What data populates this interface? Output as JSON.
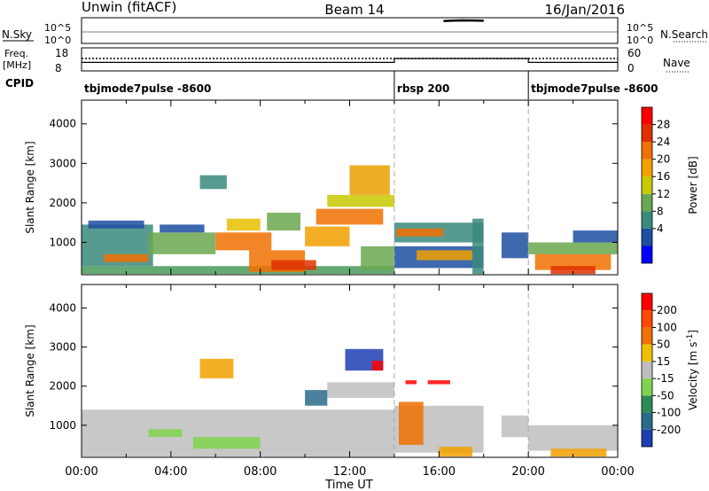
{
  "header": {
    "station": "Unwin (fitACF)",
    "beam": "Beam 14",
    "date": "16/Jan/2016"
  },
  "top_panels": {
    "nsky_label": "N.Sky",
    "nsearch_label": "N.Search",
    "noise_ticks": [
      "10^5",
      "10^0"
    ],
    "freq_label_1": "Freq.",
    "freq_label_2": "[MHz]",
    "freq_ticks": [
      "18",
      "8"
    ],
    "nave_ticks": [
      "60",
      "0"
    ],
    "nave_label": "Nave",
    "cpid_label": "CPID",
    "noise_trace": [
      [
        16.2,
        0.88
      ],
      [
        16.5,
        0.9
      ],
      [
        17.0,
        0.93
      ],
      [
        17.5,
        0.92
      ],
      [
        18.0,
        0.9
      ]
    ],
    "nave_level": 0.9,
    "nave_gap": [
      14.0,
      20.0
    ],
    "cpid_segments": [
      {
        "start": 0,
        "end": 14,
        "label": "tbjmode7pulse -8600"
      },
      {
        "start": 14,
        "end": 20,
        "label": "rbsp 200"
      },
      {
        "start": 20,
        "end": 24,
        "label": "tbjmode7pulse -8600"
      }
    ]
  },
  "chart_data": [
    {
      "type": "heatmap",
      "name": "power",
      "ylabel": "Slant Range [km]",
      "ylim": [
        180,
        4600
      ],
      "xlim": [
        0,
        24
      ],
      "yticks": [
        1000,
        2000,
        3000,
        4000
      ],
      "colorbar_label": "Power [dB]",
      "colorbar_ticks": [
        "28",
        "24",
        "20",
        "16",
        "12",
        "8",
        "4"
      ],
      "colorbar_colors": [
        "#0000ff",
        "#1d4fa0",
        "#3a8a7c",
        "#6aa84f",
        "#c8c800",
        "#f2a000",
        "#f07000",
        "#e03000",
        "#ff0000"
      ],
      "blocks": [
        {
          "x0": 0.0,
          "x1": 14.0,
          "y0": 200,
          "y1": 400,
          "c": "#4a9a5c"
        },
        {
          "x0": 0.0,
          "x1": 3.2,
          "y0": 400,
          "y1": 1450,
          "c": "#3a8a7c"
        },
        {
          "x0": 0.3,
          "x1": 2.8,
          "y0": 1350,
          "y1": 1550,
          "c": "#1d4fa0"
        },
        {
          "x0": 1.0,
          "x1": 3.0,
          "y0": 500,
          "y1": 700,
          "c": "#f07000"
        },
        {
          "x0": 3.0,
          "x1": 6.0,
          "y0": 700,
          "y1": 1250,
          "c": "#6aa84f"
        },
        {
          "x0": 3.5,
          "x1": 5.5,
          "y0": 1250,
          "y1": 1450,
          "c": "#1d4fa0"
        },
        {
          "x0": 5.3,
          "x1": 6.5,
          "y0": 2350,
          "y1": 2700,
          "c": "#3a8a7c"
        },
        {
          "x0": 6.0,
          "x1": 8.5,
          "y0": 800,
          "y1": 1250,
          "c": "#f07000"
        },
        {
          "x0": 6.5,
          "x1": 8.0,
          "y0": 1300,
          "y1": 1600,
          "c": "#e8c000"
        },
        {
          "x0": 7.5,
          "x1": 10.0,
          "y0": 250,
          "y1": 800,
          "c": "#f07000"
        },
        {
          "x0": 8.5,
          "x1": 10.5,
          "y0": 300,
          "y1": 550,
          "c": "#e03000"
        },
        {
          "x0": 8.3,
          "x1": 9.8,
          "y0": 1300,
          "y1": 1750,
          "c": "#6aa84f"
        },
        {
          "x0": 10.0,
          "x1": 12.0,
          "y0": 900,
          "y1": 1400,
          "c": "#f2a000"
        },
        {
          "x0": 10.5,
          "x1": 13.5,
          "y0": 1450,
          "y1": 1850,
          "c": "#f07000"
        },
        {
          "x0": 12.0,
          "x1": 13.8,
          "y0": 2200,
          "y1": 2950,
          "c": "#e8a000"
        },
        {
          "x0": 11.0,
          "x1": 14.0,
          "y0": 1900,
          "y1": 2200,
          "c": "#c8c800"
        },
        {
          "x0": 12.5,
          "x1": 14.0,
          "y0": 300,
          "y1": 900,
          "c": "#6aa84f"
        },
        {
          "x0": 14.0,
          "x1": 18.0,
          "y0": 1000,
          "y1": 1500,
          "c": "#3a8a7c"
        },
        {
          "x0": 14.1,
          "x1": 16.2,
          "y0": 1150,
          "y1": 1350,
          "c": "#f07000"
        },
        {
          "x0": 14.0,
          "x1": 18.0,
          "y0": 350,
          "y1": 900,
          "c": "#1d4fa0"
        },
        {
          "x0": 15.0,
          "x1": 17.5,
          "y0": 550,
          "y1": 800,
          "c": "#f2a000"
        },
        {
          "x0": 17.5,
          "x1": 18.0,
          "y0": 200,
          "y1": 1600,
          "c": "#3a8a7c"
        },
        {
          "x0": 18.8,
          "x1": 20.0,
          "y0": 600,
          "y1": 1250,
          "c": "#1d4fa0"
        },
        {
          "x0": 20.0,
          "x1": 24.0,
          "y0": 700,
          "y1": 1000,
          "c": "#6aa84f"
        },
        {
          "x0": 20.3,
          "x1": 23.7,
          "y0": 300,
          "y1": 700,
          "c": "#f07000"
        },
        {
          "x0": 21.0,
          "x1": 23.0,
          "y0": 200,
          "y1": 400,
          "c": "#e03000"
        },
        {
          "x0": 22.0,
          "x1": 24.0,
          "y0": 1000,
          "y1": 1300,
          "c": "#1d4fa0"
        }
      ]
    },
    {
      "type": "heatmap",
      "name": "velocity",
      "ylabel": "Slant Range [km]",
      "xlabel": "Time UT",
      "ylim": [
        180,
        4600
      ],
      "xlim": [
        0,
        24
      ],
      "yticks": [
        1000,
        2000,
        3000,
        4000
      ],
      "xticks": [
        "00:00",
        "04:00",
        "08:00",
        "12:00",
        "16:00",
        "20:00",
        "00:00"
      ],
      "colorbar_label": "Velocity [m s",
      "colorbar_label_sup": "-1",
      "colorbar_label_end": "]",
      "colorbar_ticks": [
        "200",
        "100",
        "50",
        "15",
        "-15",
        "-50",
        "-100",
        "-200"
      ],
      "colorbar_colors": [
        "#1d3fb0",
        "#2a6a8a",
        "#2e8b57",
        "#7fd34e",
        "#bebebe",
        "#f0c000",
        "#f07000",
        "#ff4a00",
        "#ff0000"
      ],
      "blocks": [
        {
          "x0": 0.0,
          "x1": 14.0,
          "y0": 200,
          "y1": 1400,
          "c": "#bebebe"
        },
        {
          "x0": 5.3,
          "x1": 6.8,
          "y0": 2200,
          "y1": 2700,
          "c": "#f2a000"
        },
        {
          "x0": 11.8,
          "x1": 13.5,
          "y0": 2400,
          "y1": 2950,
          "c": "#1d3fb0"
        },
        {
          "x0": 13.0,
          "x1": 13.5,
          "y0": 2400,
          "y1": 2650,
          "c": "#ff0000"
        },
        {
          "x0": 11.0,
          "x1": 14.0,
          "y0": 1700,
          "y1": 2100,
          "c": "#bebebe"
        },
        {
          "x0": 10.0,
          "x1": 11.0,
          "y0": 1500,
          "y1": 1900,
          "c": "#2a6a8a"
        },
        {
          "x0": 3.0,
          "x1": 4.5,
          "y0": 700,
          "y1": 900,
          "c": "#7fd34e"
        },
        {
          "x0": 14.0,
          "x1": 18.0,
          "y0": 300,
          "y1": 1500,
          "c": "#bebebe"
        },
        {
          "x0": 14.2,
          "x1": 15.3,
          "y0": 500,
          "y1": 1600,
          "c": "#f07000"
        },
        {
          "x0": 16.0,
          "x1": 17.5,
          "y0": 200,
          "y1": 450,
          "c": "#f2a000"
        },
        {
          "x0": 15.5,
          "x1": 16.5,
          "y0": 2050,
          "y1": 2150,
          "c": "#ff0000"
        },
        {
          "x0": 14.5,
          "x1": 15.0,
          "y0": 2050,
          "y1": 2150,
          "c": "#ff0000"
        },
        {
          "x0": 20.0,
          "x1": 24.0,
          "y0": 350,
          "y1": 1000,
          "c": "#bebebe"
        },
        {
          "x0": 18.8,
          "x1": 20.0,
          "y0": 700,
          "y1": 1250,
          "c": "#bebebe"
        },
        {
          "x0": 21.0,
          "x1": 23.5,
          "y0": 200,
          "y1": 400,
          "c": "#f2a000"
        },
        {
          "x0": 5.0,
          "x1": 8.0,
          "y0": 400,
          "y1": 700,
          "c": "#7fd34e"
        }
      ]
    }
  ]
}
